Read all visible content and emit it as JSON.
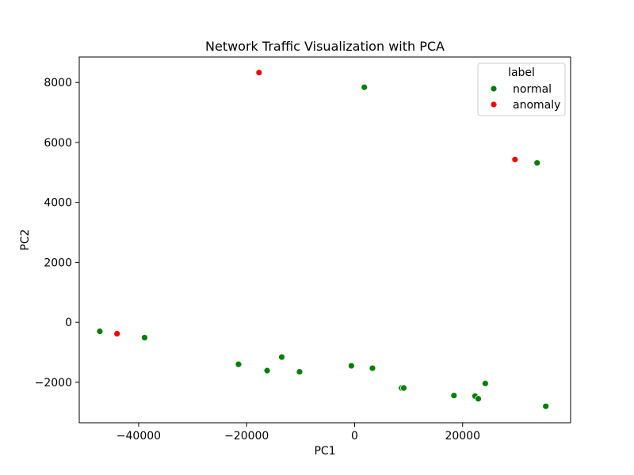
{
  "chart_data": {
    "type": "scatter",
    "title": "Network Traffic Visualization with PCA",
    "xlabel": "PC1",
    "ylabel": "PC2",
    "xlim": [
      -51000,
      40000
    ],
    "ylim": [
      -3350,
      8850
    ],
    "xticks": [
      -40000,
      -20000,
      0,
      20000
    ],
    "xtick_labels": [
      "−40000",
      "−20000",
      "0",
      "20000"
    ],
    "yticks": [
      -2000,
      0,
      2000,
      4000,
      6000,
      8000
    ],
    "ytick_labels": [
      "−2000",
      "0",
      "2000",
      "4000",
      "6000",
      "8000"
    ],
    "grid": false,
    "legend": {
      "title": "label",
      "position": "top-right",
      "entries": [
        {
          "name": "normal",
          "color": "#008000"
        },
        {
          "name": "anomaly",
          "color": "#ff0000"
        }
      ]
    },
    "series": [
      {
        "name": "normal",
        "color": "#008000",
        "points": [
          {
            "x": 1800,
            "y": 7840
          },
          {
            "x": 33800,
            "y": 5320
          },
          {
            "x": -47200,
            "y": -300
          },
          {
            "x": -38900,
            "y": -510
          },
          {
            "x": -21500,
            "y": -1400
          },
          {
            "x": -16200,
            "y": -1610
          },
          {
            "x": -13500,
            "y": -1160
          },
          {
            "x": -10200,
            "y": -1650
          },
          {
            "x": -600,
            "y": -1450
          },
          {
            "x": 3300,
            "y": -1530
          },
          {
            "x": 8700,
            "y": -2190
          },
          {
            "x": 9100,
            "y": -2190
          },
          {
            "x": 18400,
            "y": -2440
          },
          {
            "x": 22300,
            "y": -2460
          },
          {
            "x": 22900,
            "y": -2550
          },
          {
            "x": 24200,
            "y": -2040
          },
          {
            "x": 35400,
            "y": -2800
          }
        ]
      },
      {
        "name": "anomaly",
        "color": "#ff0000",
        "points": [
          {
            "x": -17700,
            "y": 8330
          },
          {
            "x": 29700,
            "y": 5430
          },
          {
            "x": -44000,
            "y": -380
          }
        ]
      }
    ]
  }
}
